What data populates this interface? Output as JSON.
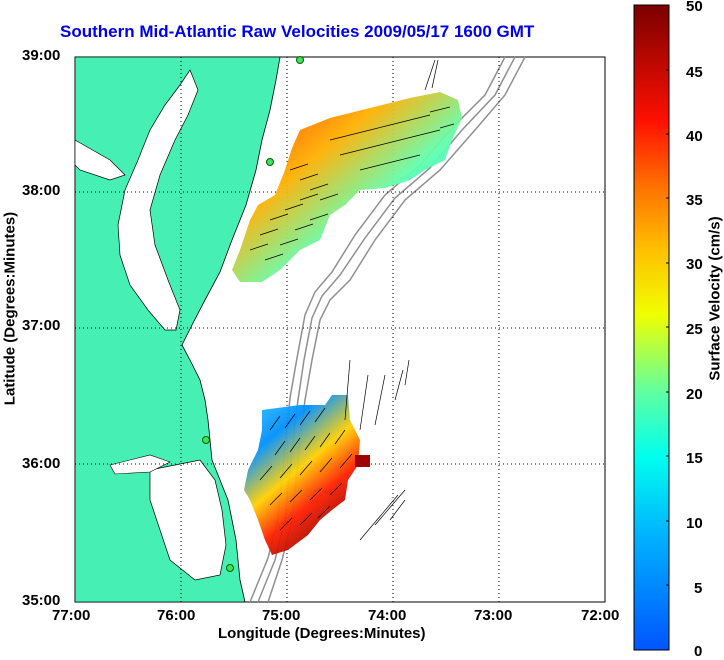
{
  "title": "Southern Mid-Atlantic Raw Velocities 2009/05/17 1600 GMT",
  "axes": {
    "xlabel": "Longitude (Degrees:Minutes)",
    "ylabel": "Latitude (Degrees:Minutes)",
    "xticks": [
      "77:00",
      "76:00",
      "75:00",
      "74:00",
      "73:00",
      "72:00"
    ],
    "yticks": [
      "39:00",
      "38:00",
      "37:00",
      "36:00",
      "35:00"
    ]
  },
  "colorbar": {
    "label": "Surface Velocity (cm/s)",
    "ticks": [
      "50",
      "45",
      "40",
      "35",
      "30",
      "25",
      "20",
      "15",
      "10",
      "5",
      "0"
    ],
    "min": 0,
    "max": 50
  },
  "colors": {
    "land": "#46f0b4",
    "title": "#0000ee",
    "bathymetry": "#909090"
  }
}
